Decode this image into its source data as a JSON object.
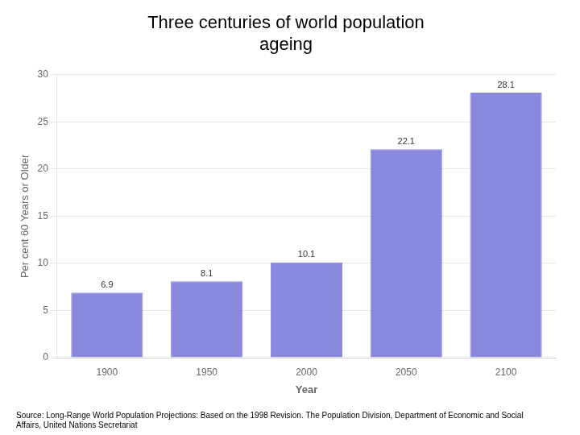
{
  "chart_data": {
    "type": "bar",
    "title": "Three centuries of world population\nageing",
    "categories": [
      "1900",
      "1950",
      "2000",
      "2050",
      "2100"
    ],
    "values": [
      6.9,
      8.1,
      10.1,
      22.1,
      28.1
    ],
    "color": "#8888dd",
    "xlabel": "Year",
    "ylabel": "Per cent 60 Years or Older",
    "ylim": [
      0,
      30
    ],
    "yticks": [
      0,
      5,
      10,
      15,
      20,
      25,
      30
    ],
    "grid": true,
    "data_labels": true,
    "annotations": [
      "Source: Long-Range World Population Projections: Based on the 1998 Revision. The Population Division, Department of Economic and Social Affairs, United Nations Secretariat"
    ]
  }
}
